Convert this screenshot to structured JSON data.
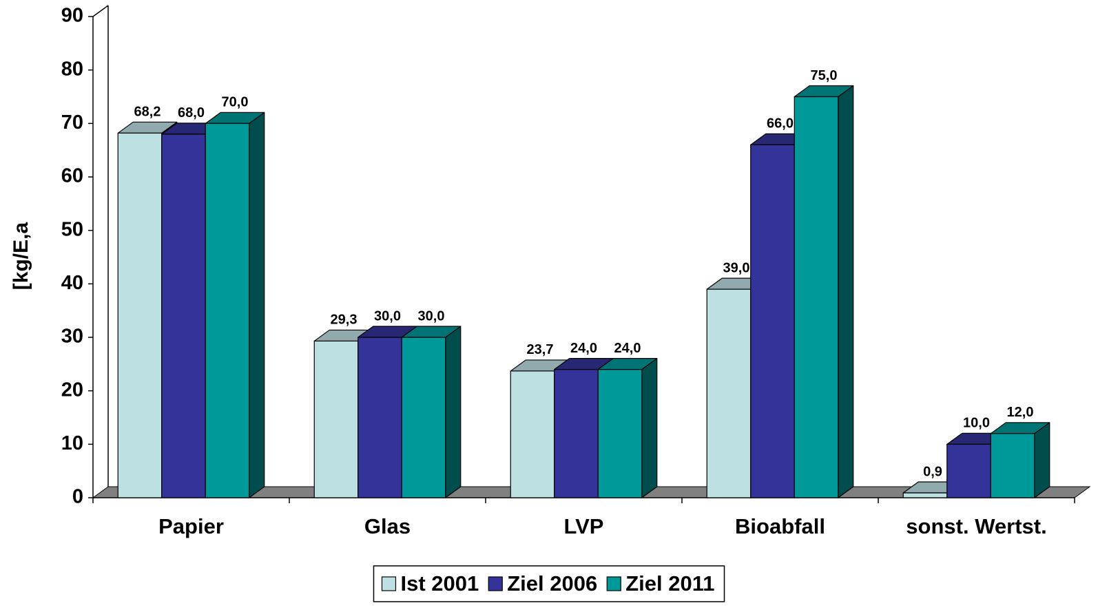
{
  "chart_data": {
    "type": "bar3d",
    "y_axis_label": "[kg/E,a",
    "categories": [
      "Papier",
      "Glas",
      "LVP",
      "Bioabfall",
      "sonst. Wertst."
    ],
    "series": [
      {
        "name": "Ist 2001",
        "color": "#bde0e3",
        "values": [
          68.2,
          29.3,
          23.7,
          39.0,
          0.9
        ],
        "value_labels": [
          "68,2",
          "29,3",
          "23,7",
          "39,0",
          "0,9"
        ]
      },
      {
        "name": "Ziel 2006",
        "color": "#333399",
        "values": [
          68.0,
          30.0,
          24.0,
          66.0,
          10.0
        ],
        "value_labels": [
          "68,0",
          "30,0",
          "24,0",
          "66,0",
          "10,0"
        ]
      },
      {
        "name": "Ziel 2011",
        "color": "#009999",
        "values": [
          70.0,
          30.0,
          24.0,
          75.0,
          12.0
        ],
        "value_labels": [
          "70,0",
          "30,0",
          "24,0",
          "75,0",
          "12,0"
        ]
      }
    ],
    "ylim": [
      0,
      90
    ],
    "yticks": [
      0,
      10,
      20,
      30,
      40,
      50,
      60,
      70,
      80,
      90
    ],
    "legend": "bottom",
    "floor_color": "#808080"
  }
}
